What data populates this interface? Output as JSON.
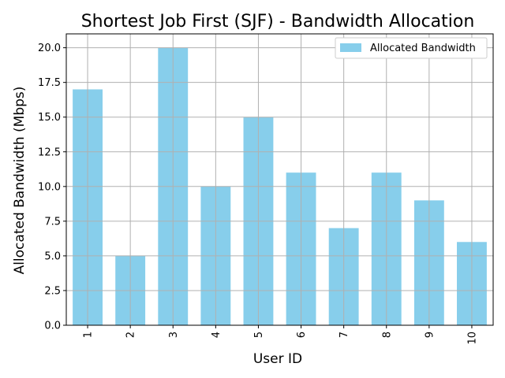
{
  "chart_data": {
    "type": "bar",
    "title": "Shortest Job First (SJF) - Bandwidth Allocation",
    "xlabel": "User ID",
    "ylabel": "Allocated Bandwidth (Mbps)",
    "categories": [
      "1",
      "2",
      "3",
      "4",
      "5",
      "6",
      "7",
      "8",
      "9",
      "10"
    ],
    "series": [
      {
        "name": "Allocated Bandwidth",
        "values": [
          17,
          5,
          20,
          10,
          15,
          11,
          7,
          11,
          9,
          6
        ]
      }
    ],
    "ylim": [
      0,
      21
    ],
    "yticks": [
      "0.0",
      "2.5",
      "5.0",
      "7.5",
      "10.0",
      "12.5",
      "15.0",
      "17.5",
      "20.0"
    ],
    "grid": true,
    "legend_position": "top-right",
    "bar_color": "#87ceeb",
    "grid_color": "#b0b0b0"
  }
}
